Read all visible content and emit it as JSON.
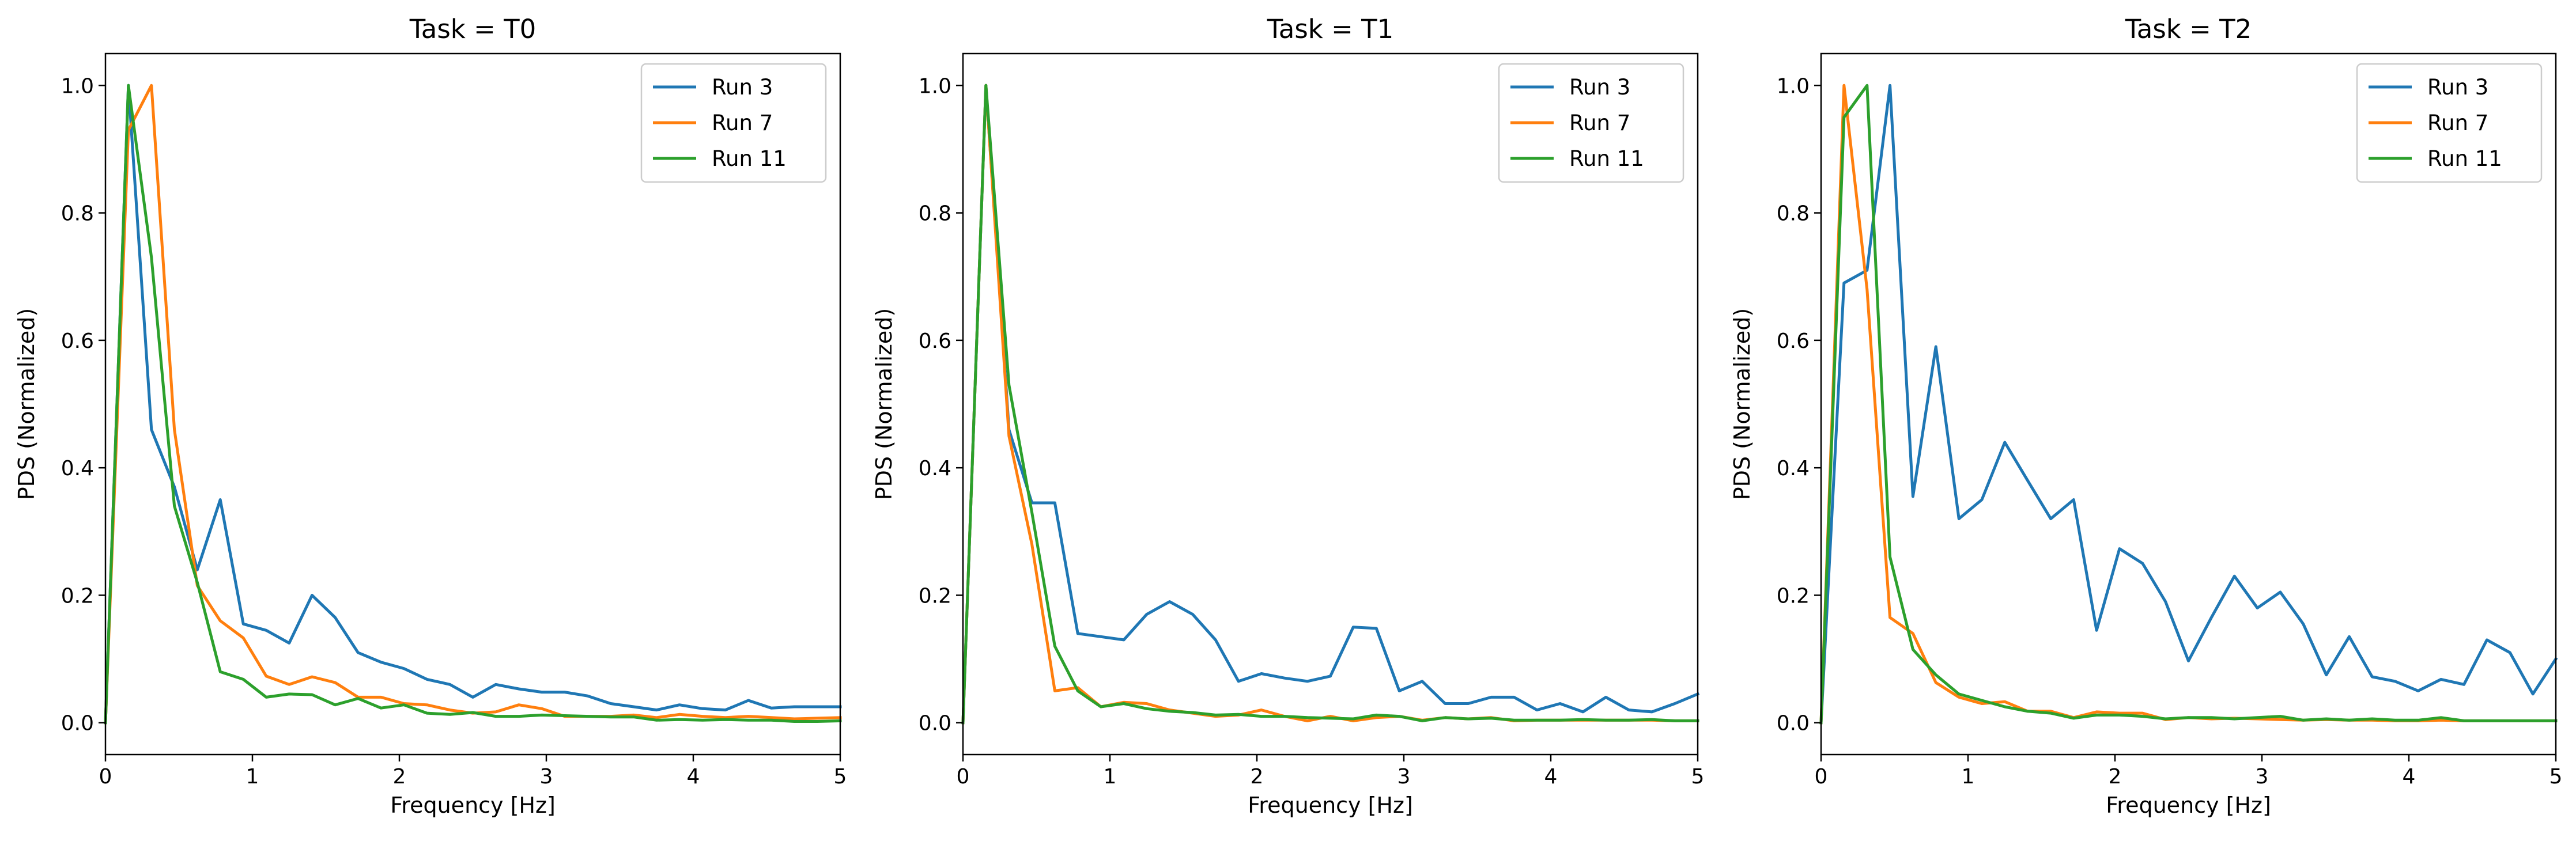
{
  "chart_data": [
    {
      "type": "line",
      "title": "Task = T0",
      "xlabel": "Frequency [Hz]",
      "ylabel": "PDS (Normalized)",
      "xlim": [
        0,
        5
      ],
      "ylim": [
        -0.05,
        1.05
      ],
      "xticks": [
        "0",
        "1",
        "2",
        "3",
        "4",
        "5"
      ],
      "yticks": [
        "0.0",
        "0.2",
        "0.4",
        "0.6",
        "0.8",
        "1.0"
      ],
      "grid": false,
      "legend": "top-right",
      "series": [
        {
          "name": "Run 3",
          "color": "#1f77b4",
          "x": [
            0,
            0.156,
            0.313,
            0.469,
            0.625,
            0.781,
            0.938,
            1.094,
            1.25,
            1.406,
            1.563,
            1.719,
            1.875,
            2.031,
            2.188,
            2.344,
            2.5,
            2.656,
            2.813,
            2.969,
            3.125,
            3.281,
            3.438,
            3.594,
            3.75,
            3.906,
            4.063,
            4.219,
            4.375,
            4.531,
            4.688,
            4.844,
            5.0
          ],
          "y": [
            0.0,
            1.0,
            0.46,
            0.37,
            0.24,
            0.35,
            0.155,
            0.145,
            0.125,
            0.2,
            0.165,
            0.11,
            0.095,
            0.085,
            0.068,
            0.06,
            0.04,
            0.06,
            0.053,
            0.048,
            0.048,
            0.042,
            0.03,
            0.025,
            0.02,
            0.028,
            0.022,
            0.02,
            0.035,
            0.023,
            0.025,
            0.025,
            0.025
          ]
        },
        {
          "name": "Run 7",
          "color": "#ff7f0e",
          "x": [
            0,
            0.156,
            0.313,
            0.469,
            0.625,
            0.781,
            0.938,
            1.094,
            1.25,
            1.406,
            1.563,
            1.719,
            1.875,
            2.031,
            2.188,
            2.344,
            2.5,
            2.656,
            2.813,
            2.969,
            3.125,
            3.281,
            3.438,
            3.594,
            3.75,
            3.906,
            4.063,
            4.219,
            4.375,
            4.531,
            4.688,
            4.844,
            5.0
          ],
          "y": [
            0.0,
            0.93,
            1.0,
            0.46,
            0.215,
            0.16,
            0.133,
            0.073,
            0.06,
            0.072,
            0.063,
            0.04,
            0.04,
            0.03,
            0.028,
            0.02,
            0.015,
            0.017,
            0.028,
            0.022,
            0.01,
            0.01,
            0.01,
            0.012,
            0.008,
            0.013,
            0.01,
            0.008,
            0.01,
            0.008,
            0.006,
            0.007,
            0.008
          ]
        },
        {
          "name": "Run 11",
          "color": "#2ca02c",
          "x": [
            0,
            0.156,
            0.313,
            0.469,
            0.625,
            0.781,
            0.938,
            1.094,
            1.25,
            1.406,
            1.563,
            1.719,
            1.875,
            2.031,
            2.188,
            2.344,
            2.5,
            2.656,
            2.813,
            2.969,
            3.125,
            3.281,
            3.438,
            3.594,
            3.75,
            3.906,
            4.063,
            4.219,
            4.375,
            4.531,
            4.688,
            4.844,
            5.0
          ],
          "y": [
            0.0,
            1.0,
            0.73,
            0.34,
            0.22,
            0.08,
            0.068,
            0.04,
            0.045,
            0.044,
            0.028,
            0.038,
            0.023,
            0.028,
            0.015,
            0.013,
            0.016,
            0.01,
            0.01,
            0.012,
            0.011,
            0.01,
            0.009,
            0.009,
            0.004,
            0.005,
            0.004,
            0.005,
            0.004,
            0.004,
            0.002,
            0.002,
            0.003
          ]
        }
      ]
    },
    {
      "type": "line",
      "title": "Task = T1",
      "xlabel": "Frequency [Hz]",
      "ylabel": "PDS (Normalized)",
      "xlim": [
        0,
        5
      ],
      "ylim": [
        -0.05,
        1.05
      ],
      "xticks": [
        "0",
        "1",
        "2",
        "3",
        "4",
        "5"
      ],
      "yticks": [
        "0.0",
        "0.2",
        "0.4",
        "0.6",
        "0.8",
        "1.0"
      ],
      "grid": false,
      "legend": "top-right",
      "series": [
        {
          "name": "Run 3",
          "color": "#1f77b4",
          "x": [
            0,
            0.156,
            0.313,
            0.469,
            0.625,
            0.781,
            0.938,
            1.094,
            1.25,
            1.406,
            1.563,
            1.719,
            1.875,
            2.031,
            2.188,
            2.344,
            2.5,
            2.656,
            2.813,
            2.969,
            3.125,
            3.281,
            3.438,
            3.594,
            3.75,
            3.906,
            4.063,
            4.219,
            4.375,
            4.531,
            4.688,
            4.844,
            5.0
          ],
          "y": [
            0.0,
            1.0,
            0.46,
            0.345,
            0.345,
            0.14,
            0.135,
            0.13,
            0.17,
            0.19,
            0.17,
            0.13,
            0.065,
            0.077,
            0.07,
            0.065,
            0.073,
            0.15,
            0.148,
            0.05,
            0.065,
            0.03,
            0.03,
            0.04,
            0.04,
            0.02,
            0.03,
            0.017,
            0.04,
            0.02,
            0.017,
            0.03,
            0.045
          ]
        },
        {
          "name": "Run 7",
          "color": "#ff7f0e",
          "x": [
            0,
            0.156,
            0.313,
            0.469,
            0.625,
            0.781,
            0.938,
            1.094,
            1.25,
            1.406,
            1.563,
            1.719,
            1.875,
            2.031,
            2.188,
            2.344,
            2.5,
            2.656,
            2.813,
            2.969,
            3.125,
            3.281,
            3.438,
            3.594,
            3.75,
            3.906,
            4.063,
            4.219,
            4.375,
            4.531,
            4.688,
            4.844,
            5.0
          ],
          "y": [
            0.0,
            1.0,
            0.45,
            0.28,
            0.05,
            0.055,
            0.025,
            0.032,
            0.03,
            0.02,
            0.015,
            0.01,
            0.012,
            0.02,
            0.01,
            0.003,
            0.01,
            0.003,
            0.008,
            0.01,
            0.004,
            0.008,
            0.006,
            0.008,
            0.003,
            0.004,
            0.004,
            0.004,
            0.004,
            0.004,
            0.004,
            0.003,
            0.003
          ]
        },
        {
          "name": "Run 11",
          "color": "#2ca02c",
          "x": [
            0,
            0.156,
            0.313,
            0.469,
            0.625,
            0.781,
            0.938,
            1.094,
            1.25,
            1.406,
            1.563,
            1.719,
            1.875,
            2.031,
            2.188,
            2.344,
            2.5,
            2.656,
            2.813,
            2.969,
            3.125,
            3.281,
            3.438,
            3.594,
            3.75,
            3.906,
            4.063,
            4.219,
            4.375,
            4.531,
            4.688,
            4.844,
            5.0
          ],
          "y": [
            0.0,
            1.0,
            0.53,
            0.33,
            0.12,
            0.05,
            0.025,
            0.03,
            0.022,
            0.018,
            0.016,
            0.012,
            0.013,
            0.01,
            0.01,
            0.008,
            0.007,
            0.006,
            0.012,
            0.01,
            0.003,
            0.008,
            0.006,
            0.007,
            0.004,
            0.004,
            0.004,
            0.005,
            0.004,
            0.004,
            0.005,
            0.003,
            0.003
          ]
        }
      ]
    },
    {
      "type": "line",
      "title": "Task = T2",
      "xlabel": "Frequency [Hz]",
      "ylabel": "PDS (Normalized)",
      "xlim": [
        0,
        5
      ],
      "ylim": [
        -0.05,
        1.05
      ],
      "xticks": [
        "0",
        "1",
        "2",
        "3",
        "4",
        "5"
      ],
      "yticks": [
        "0.0",
        "0.2",
        "0.4",
        "0.6",
        "0.8",
        "1.0"
      ],
      "grid": false,
      "legend": "top-right",
      "series": [
        {
          "name": "Run 3",
          "color": "#1f77b4",
          "x": [
            0,
            0.156,
            0.313,
            0.469,
            0.625,
            0.781,
            0.938,
            1.094,
            1.25,
            1.406,
            1.563,
            1.719,
            1.875,
            2.031,
            2.188,
            2.344,
            2.5,
            2.656,
            2.813,
            2.969,
            3.125,
            3.281,
            3.438,
            3.594,
            3.75,
            3.906,
            4.063,
            4.219,
            4.375,
            4.531,
            4.688,
            4.844,
            5.0
          ],
          "y": [
            0.0,
            0.69,
            0.71,
            1.0,
            0.355,
            0.59,
            0.32,
            0.35,
            0.44,
            0.38,
            0.32,
            0.35,
            0.145,
            0.273,
            0.25,
            0.19,
            0.097,
            0.165,
            0.23,
            0.18,
            0.205,
            0.155,
            0.075,
            0.135,
            0.072,
            0.065,
            0.05,
            0.068,
            0.06,
            0.13,
            0.11,
            0.045,
            0.1
          ]
        },
        {
          "name": "Run 7",
          "color": "#ff7f0e",
          "x": [
            0,
            0.156,
            0.313,
            0.469,
            0.625,
            0.781,
            0.938,
            1.094,
            1.25,
            1.406,
            1.563,
            1.719,
            1.875,
            2.031,
            2.188,
            2.344,
            2.5,
            2.656,
            2.813,
            2.969,
            3.125,
            3.281,
            3.438,
            3.594,
            3.75,
            3.906,
            4.063,
            4.219,
            4.375,
            4.531,
            4.688,
            4.844,
            5.0
          ],
          "y": [
            0.0,
            1.0,
            0.68,
            0.165,
            0.14,
            0.063,
            0.04,
            0.03,
            0.033,
            0.018,
            0.018,
            0.008,
            0.017,
            0.015,
            0.015,
            0.005,
            0.008,
            0.006,
            0.007,
            0.006,
            0.005,
            0.004,
            0.005,
            0.004,
            0.004,
            0.003,
            0.003,
            0.004,
            0.003,
            0.003,
            0.003,
            0.003,
            0.003
          ]
        },
        {
          "name": "Run 11",
          "color": "#2ca02c",
          "x": [
            0,
            0.156,
            0.313,
            0.469,
            0.625,
            0.781,
            0.938,
            1.094,
            1.25,
            1.406,
            1.563,
            1.719,
            1.875,
            2.031,
            2.188,
            2.344,
            2.5,
            2.656,
            2.813,
            2.969,
            3.125,
            3.281,
            3.438,
            3.594,
            3.75,
            3.906,
            4.063,
            4.219,
            4.375,
            4.531,
            4.688,
            4.844,
            5.0
          ],
          "y": [
            0.0,
            0.95,
            1.0,
            0.26,
            0.115,
            0.075,
            0.045,
            0.035,
            0.025,
            0.018,
            0.015,
            0.007,
            0.012,
            0.012,
            0.01,
            0.006,
            0.008,
            0.008,
            0.006,
            0.008,
            0.01,
            0.004,
            0.006,
            0.004,
            0.006,
            0.004,
            0.004,
            0.008,
            0.003,
            0.003,
            0.003,
            0.003,
            0.003
          ]
        }
      ]
    }
  ]
}
